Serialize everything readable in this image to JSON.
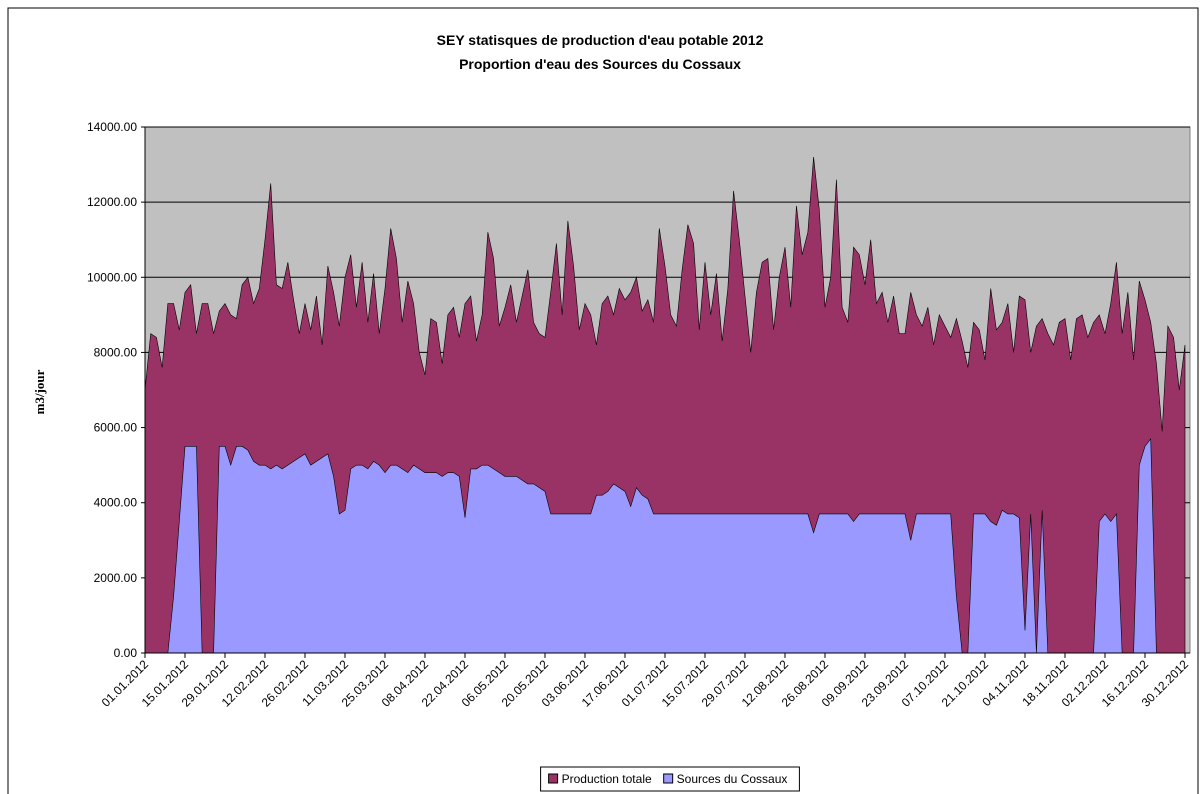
{
  "chart_data": {
    "type": "area",
    "title": "SEY statisques de production d'eau potable 2012",
    "subtitle": "Proportion d'eau des Sources du Cossaux",
    "y_label": "m3/jour",
    "categories": [
      "01.01.2012",
      null,
      null,
      null,
      null,
      null,
      null,
      "15.01.2012",
      null,
      null,
      null,
      null,
      null,
      null,
      "29.01.2012",
      null,
      null,
      null,
      null,
      null,
      null,
      "12.02.2012",
      null,
      null,
      null,
      null,
      null,
      null,
      "26.02.2012",
      null,
      null,
      null,
      null,
      null,
      null,
      "11.03.2012",
      null,
      null,
      null,
      null,
      null,
      null,
      "25.03.2012",
      null,
      null,
      null,
      null,
      null,
      null,
      "08.04.2012",
      null,
      null,
      null,
      null,
      null,
      null,
      "22.04.2012",
      null,
      null,
      null,
      null,
      null,
      null,
      "06.05.2012",
      null,
      null,
      null,
      null,
      null,
      null,
      "20.05.2012",
      null,
      null,
      null,
      null,
      null,
      null,
      "03.06.2012",
      null,
      null,
      null,
      null,
      null,
      null,
      "17.06.2012",
      null,
      null,
      null,
      null,
      null,
      null,
      "01.07.2012",
      null,
      null,
      null,
      null,
      null,
      null,
      "15.07.2012",
      null,
      null,
      null,
      null,
      null,
      null,
      "29.07.2012",
      null,
      null,
      null,
      null,
      null,
      null,
      "12.08.2012",
      null,
      null,
      null,
      null,
      null,
      null,
      "26.08.2012",
      null,
      null,
      null,
      null,
      null,
      null,
      "09.09.2012",
      null,
      null,
      null,
      null,
      null,
      null,
      "23.09.2012",
      null,
      null,
      null,
      null,
      null,
      null,
      "07.10.2012",
      null,
      null,
      null,
      null,
      null,
      null,
      "21.10.2012",
      null,
      null,
      null,
      null,
      null,
      null,
      "04.11.2012",
      null,
      null,
      null,
      null,
      null,
      null,
      "18.11.2012",
      null,
      null,
      null,
      null,
      null,
      null,
      "02.12.2012",
      null,
      null,
      null,
      null,
      null,
      null,
      "16.12.2012",
      null,
      null,
      null,
      null,
      null,
      null,
      "30.12.2012"
    ],
    "series": [
      {
        "name": "Production totale",
        "color": "#993366",
        "values": [
          7000,
          8500,
          8400,
          7600,
          9300,
          9300,
          8600,
          9600,
          9800,
          8500,
          9300,
          9300,
          8500,
          9100,
          9300,
          9000,
          8900,
          9800,
          10000,
          9300,
          9700,
          11000,
          12500,
          9800,
          9700,
          10400,
          9400,
          8500,
          9300,
          8600,
          9500,
          8200,
          10300,
          9600,
          8700,
          10000,
          10600,
          9200,
          10400,
          8800,
          10100,
          8500,
          9700,
          11300,
          10500,
          8800,
          9900,
          9300,
          8000,
          7400,
          8900,
          8800,
          7700,
          9000,
          9200,
          8400,
          9300,
          9500,
          8300,
          9000,
          11200,
          10500,
          8700,
          9200,
          9800,
          8800,
          9500,
          10200,
          8800,
          8500,
          8400,
          9600,
          10900,
          9000,
          11500,
          10300,
          8600,
          9300,
          9000,
          8200,
          9300,
          9500,
          9000,
          9700,
          9400,
          9600,
          10000,
          9100,
          9400,
          8800,
          11300,
          10300,
          9000,
          8700,
          10200,
          11400,
          10900,
          8600,
          10400,
          9000,
          10100,
          8300,
          9700,
          12300,
          11000,
          9500,
          8000,
          9600,
          10400,
          10500,
          8600,
          10000,
          10800,
          9200,
          11900,
          10600,
          11200,
          13200,
          11800,
          9200,
          10000,
          12600,
          9200,
          8800,
          10800,
          10600,
          9800,
          11000,
          9300,
          9600,
          8800,
          9500,
          8500,
          8500,
          9600,
          9000,
          8700,
          9200,
          8200,
          9000,
          8700,
          8400,
          8900,
          8300,
          7600,
          8800,
          8600,
          7800,
          9700,
          8600,
          8800,
          9300,
          8000,
          9500,
          9400,
          8000,
          8700,
          8900,
          8500,
          8200,
          8800,
          8900,
          7800,
          8900,
          9000,
          8400,
          8800,
          9000,
          8500,
          9300,
          10400,
          8500,
          9600,
          7800,
          9900,
          9400,
          8800,
          7700,
          5900,
          8700,
          8400,
          7000,
          8200
        ]
      },
      {
        "name": "Sources du Cossaux",
        "color": "#9999ff",
        "values": [
          0,
          0,
          0,
          0,
          0,
          1500,
          3500,
          5500,
          5500,
          5500,
          0,
          0,
          0,
          5500,
          5500,
          5000,
          5500,
          5500,
          5400,
          5100,
          5000,
          5000,
          4900,
          5000,
          4900,
          5000,
          5100,
          5200,
          5300,
          5000,
          5100,
          5200,
          5300,
          4700,
          3700,
          3800,
          4900,
          5000,
          5000,
          4900,
          5100,
          5000,
          4800,
          5000,
          5000,
          4900,
          4800,
          5000,
          4900,
          4800,
          4800,
          4800,
          4700,
          4800,
          4800,
          4700,
          3600,
          4900,
          4900,
          5000,
          5000,
          4900,
          4800,
          4700,
          4700,
          4700,
          4600,
          4500,
          4500,
          4400,
          4300,
          3700,
          3700,
          3700,
          3700,
          3700,
          3700,
          3700,
          3700,
          4200,
          4200,
          4300,
          4500,
          4400,
          4300,
          3900,
          4400,
          4200,
          4100,
          3700,
          3700,
          3700,
          3700,
          3700,
          3700,
          3700,
          3700,
          3700,
          3700,
          3700,
          3700,
          3700,
          3700,
          3700,
          3700,
          3700,
          3700,
          3700,
          3700,
          3700,
          3700,
          3700,
          3700,
          3700,
          3700,
          3700,
          3700,
          3200,
          3700,
          3700,
          3700,
          3700,
          3700,
          3700,
          3500,
          3700,
          3700,
          3700,
          3700,
          3700,
          3700,
          3700,
          3700,
          3700,
          3000,
          3700,
          3700,
          3700,
          3700,
          3700,
          3700,
          3700,
          1500,
          0,
          0,
          3700,
          3700,
          3700,
          3500,
          3400,
          3800,
          3700,
          3700,
          3600,
          600,
          3700,
          0,
          3800,
          0,
          0,
          0,
          0,
          0,
          0,
          0,
          0,
          0,
          3500,
          3700,
          3500,
          3700,
          0,
          0,
          0,
          5000,
          5500,
          5700,
          0,
          0,
          0,
          0,
          0,
          0
        ]
      }
    ],
    "ylim": [
      0,
      14000
    ],
    "yticks": [
      {
        "value": 0,
        "label": "0.00"
      },
      {
        "value": 2000,
        "label": "2000.00"
      },
      {
        "value": 4000,
        "label": "4000.00"
      },
      {
        "value": 6000,
        "label": "6000.00"
      },
      {
        "value": 8000,
        "label": "8000.00"
      },
      {
        "value": 10000,
        "label": "10000.00"
      },
      {
        "value": 12000,
        "label": "12000.00"
      },
      {
        "value": 14000,
        "label": "14000.00"
      }
    ],
    "grid": true,
    "legend": "bottom"
  }
}
